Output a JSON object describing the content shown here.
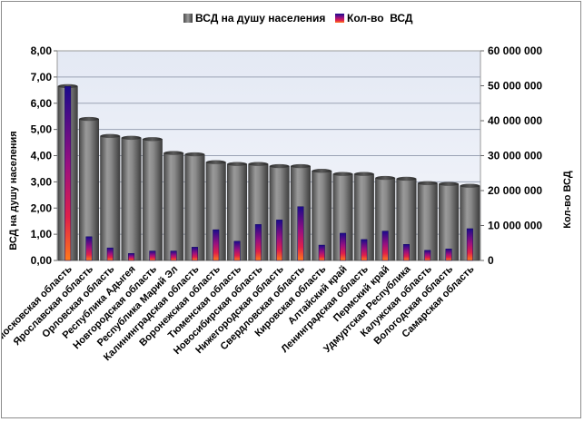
{
  "chart_data": {
    "type": "bar",
    "categories": [
      "Московская  область",
      "Ярославская  область",
      "Орловская  область",
      "Республика  Адыгея",
      "Новгородская  область",
      "Республика  Марий  Эл",
      "Калининградская  область",
      "Воронежская  область",
      "Тюменская  область",
      "Новосибирская  область",
      "Нижегородская  область",
      "Свердловская  область",
      "Кировская  область",
      "Алтайский  край",
      "Ленинградская  область",
      "Пермский  край",
      "Удмуртская  Республика",
      "Калужская  область",
      "Вологодская  область",
      "Самарская  область"
    ],
    "series": [
      {
        "name": "ВСД на душу населения",
        "axis": "left",
        "color": "#7a7a7a",
        "values": [
          6.65,
          5.4,
          4.75,
          4.68,
          4.63,
          4.1,
          4.05,
          3.75,
          3.68,
          3.68,
          3.6,
          3.6,
          3.42,
          3.3,
          3.3,
          3.15,
          3.12,
          2.95,
          2.92,
          2.85
        ]
      },
      {
        "name": "Кол-во  ВСД",
        "axis": "right",
        "color": "#1a0a8c",
        "values": [
          49800000,
          6800000,
          3600000,
          2000000,
          2700000,
          2700000,
          3800000,
          8800000,
          5500000,
          10300000,
          11600000,
          15400000,
          4400000,
          7800000,
          6000000,
          8400000,
          4600000,
          2900000,
          3300000,
          9100000
        ]
      }
    ],
    "ylabel": "ВСД на душу населения",
    "y2label": "Кол-во ВСД",
    "ylim": [
      0,
      8
    ],
    "y2lim": [
      0,
      60000000
    ],
    "yticks": [
      "0,00",
      "1,00",
      "2,00",
      "3,00",
      "4,00",
      "5,00",
      "6,00",
      "7,00",
      "8,00"
    ],
    "y2ticks": [
      "0",
      "10 000 000",
      "20 000 000",
      "30 000 000",
      "40 000 000",
      "50 000 000",
      "60 000 000"
    ],
    "grid": true,
    "legend_position": "top"
  }
}
